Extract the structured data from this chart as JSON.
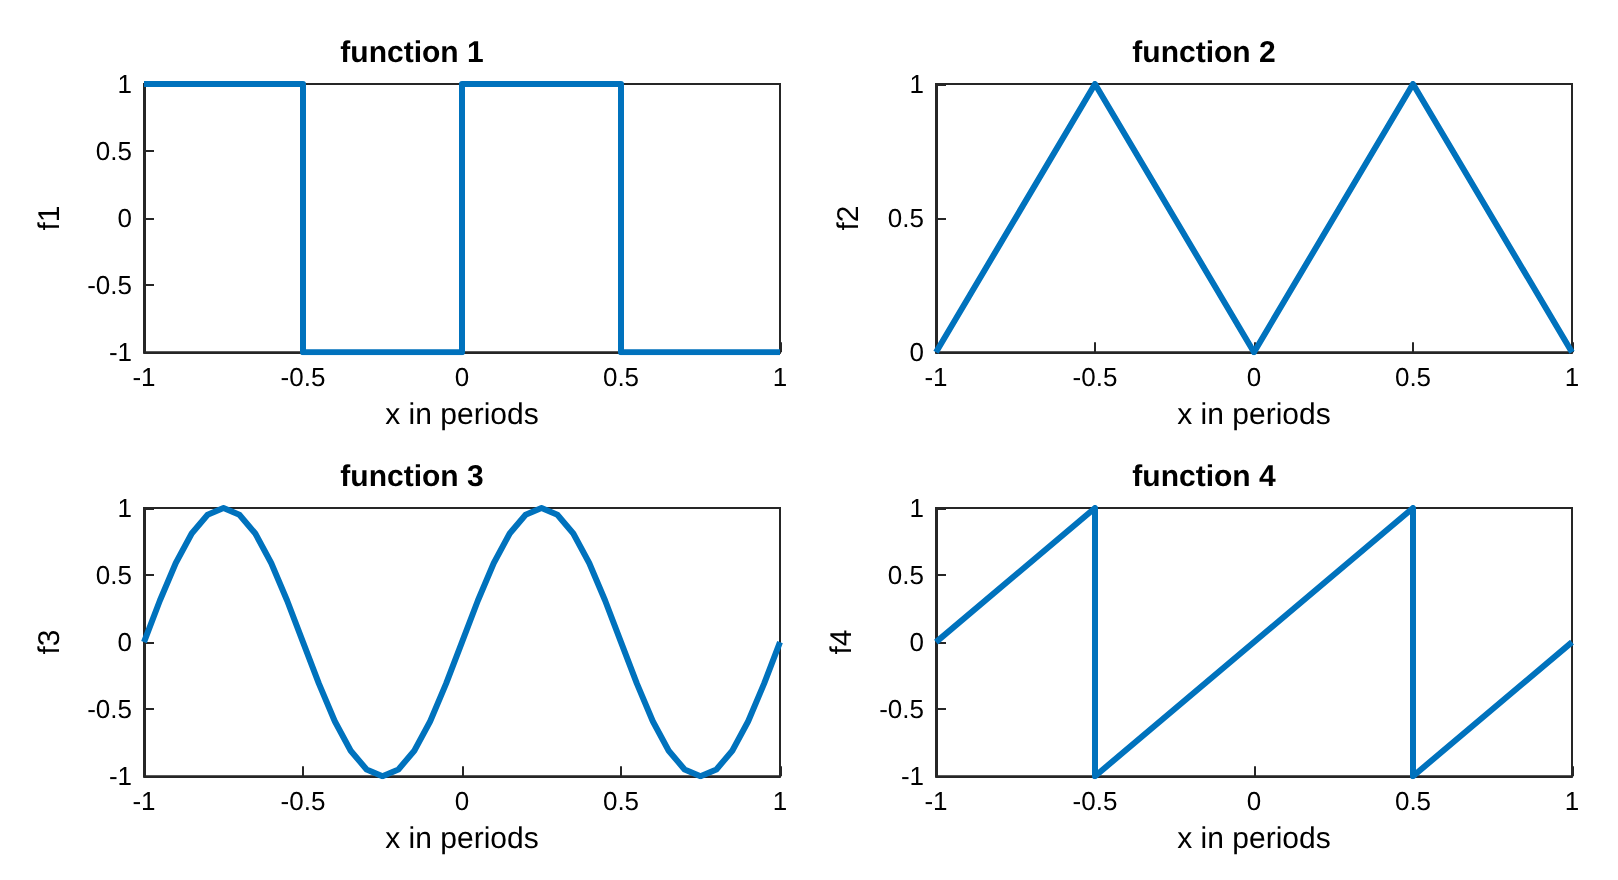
{
  "chart_data": [
    {
      "type": "line",
      "title": "function 1",
      "xlabel": "x in periods",
      "ylabel": "f1",
      "x": [
        -1,
        -0.5,
        -0.5,
        0,
        0,
        0.5,
        0.5,
        1
      ],
      "series": [
        {
          "color": "#0072bd",
          "values": [
            1,
            1,
            -1,
            -1,
            1,
            1,
            -1,
            -1
          ]
        }
      ],
      "xlim": [
        -1,
        1
      ],
      "xticks": [
        -1,
        -0.5,
        0,
        0.5,
        1
      ],
      "ylim": [
        -1,
        1
      ],
      "yticks": [
        -1,
        -0.5,
        0,
        0.5,
        1
      ],
      "marker": "none",
      "line_style": "solid"
    },
    {
      "type": "line",
      "title": "function 2",
      "xlabel": "x in periods",
      "ylabel": "f2",
      "x": [
        -1,
        -0.5,
        0,
        0.5,
        1
      ],
      "series": [
        {
          "color": "#0072bd",
          "values": [
            0,
            1,
            0,
            1,
            0
          ]
        }
      ],
      "xlim": [
        -1,
        1
      ],
      "xticks": [
        -1,
        -0.5,
        0,
        0.5,
        1
      ],
      "ylim": [
        0,
        1
      ],
      "yticks": [
        0,
        0.5,
        1
      ],
      "marker": "none",
      "line_style": "solid"
    },
    {
      "type": "line",
      "title": "function 3",
      "xlabel": "x in periods",
      "ylabel": "f3",
      "x": [
        -1,
        -0.95,
        -0.9,
        -0.85,
        -0.8,
        -0.75,
        -0.7,
        -0.65,
        -0.6,
        -0.55,
        -0.5,
        -0.45,
        -0.4,
        -0.35,
        -0.3,
        -0.25,
        -0.2,
        -0.15,
        -0.1,
        -0.05,
        0,
        0.05,
        0.1,
        0.15,
        0.2,
        0.25,
        0.3,
        0.35,
        0.4,
        0.45,
        0.5,
        0.55,
        0.6,
        0.65,
        0.7,
        0.75,
        0.8,
        0.85,
        0.9,
        0.95,
        1
      ],
      "series": [
        {
          "color": "#0072bd",
          "values": [
            0,
            0.31,
            0.59,
            0.81,
            0.95,
            1,
            0.95,
            0.81,
            0.59,
            0.31,
            0,
            -0.31,
            -0.59,
            -0.81,
            -0.95,
            -1,
            -0.95,
            -0.81,
            -0.59,
            -0.31,
            0,
            0.31,
            0.59,
            0.81,
            0.95,
            1,
            0.95,
            0.81,
            0.59,
            0.31,
            0,
            -0.31,
            -0.59,
            -0.81,
            -0.95,
            -1,
            -0.95,
            -0.81,
            -0.59,
            -0.31,
            0
          ]
        }
      ],
      "xlim": [
        -1,
        1
      ],
      "xticks": [
        -1,
        -0.5,
        0,
        0.5,
        1
      ],
      "ylim": [
        -1,
        1
      ],
      "yticks": [
        -1,
        -0.5,
        0,
        0.5,
        1
      ],
      "marker": "none",
      "line_style": "solid"
    },
    {
      "type": "line",
      "title": "function 4",
      "xlabel": "x in periods",
      "ylabel": "f4",
      "x": [
        -1,
        -0.5,
        -0.5,
        0.5,
        0.5,
        1
      ],
      "series": [
        {
          "color": "#0072bd",
          "values": [
            0,
            1,
            -1,
            1,
            -1,
            0
          ]
        }
      ],
      "xlim": [
        -1,
        1
      ],
      "xticks": [
        -1,
        -0.5,
        0,
        0.5,
        1
      ],
      "ylim": [
        -1,
        1
      ],
      "yticks": [
        -1,
        -0.5,
        0,
        0.5,
        1
      ],
      "marker": "none",
      "line_style": "solid"
    }
  ]
}
